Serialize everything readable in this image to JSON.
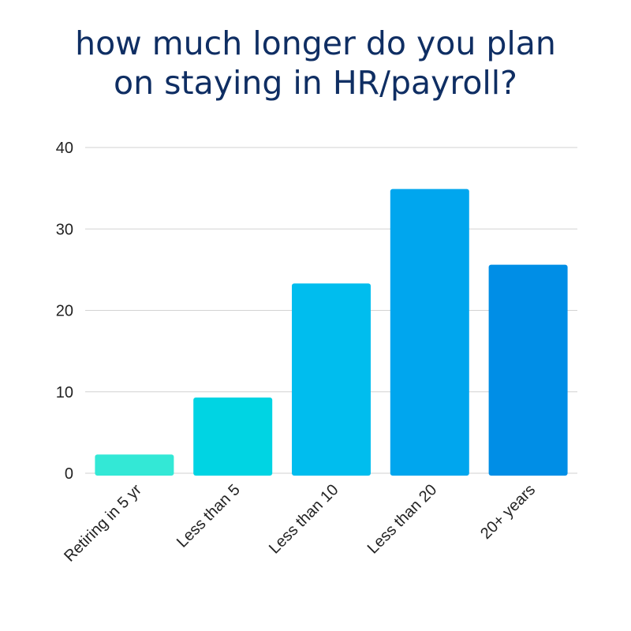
{
  "title_lines": [
    "how much longer do you plan",
    "on staying in HR/payroll?"
  ],
  "chart_data": {
    "type": "bar",
    "title": "how much longer do you plan on staying in HR/payroll?",
    "categories": [
      "Retiring in 5 yr",
      "Less than 5",
      "Less than 10",
      "Less than 20",
      "20+ years"
    ],
    "values": [
      2.3,
      9.3,
      23.3,
      34.9,
      25.6
    ],
    "colors": [
      "#33e8d6",
      "#00d4e3",
      "#00bdee",
      "#00a6ee",
      "#008ee6"
    ],
    "ylim": [
      0,
      40
    ],
    "yticks": [
      0,
      10,
      20,
      30,
      40
    ],
    "xlabel": "",
    "ylabel": "",
    "grid": true,
    "legend": "none"
  }
}
